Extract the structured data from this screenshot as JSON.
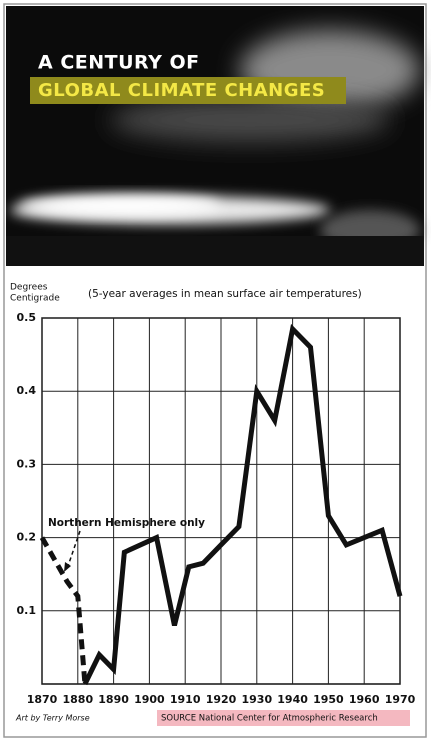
{
  "chart_data": {
    "type": "line",
    "title": [
      "A CENTURY OF",
      "GLOBAL CLIMATE CHANGES"
    ],
    "ylabel": [
      "Degrees",
      "Centigrade"
    ],
    "subtitle": "(5-year averages in mean surface air temperatures)",
    "credit": "Art by Terry Morse",
    "source": "SOURCE National Center for Atmospheric Research",
    "xlim": [
      1870,
      1970
    ],
    "xticks": [
      1870,
      1880,
      1890,
      1900,
      1910,
      1920,
      1930,
      1940,
      1950,
      1960,
      1970
    ],
    "ylim": [
      0,
      0.5
    ],
    "yticks": [
      0.1,
      0.2,
      0.3,
      0.4,
      0.5
    ],
    "grid": true,
    "series": [
      {
        "name": "Northern Hemisphere only",
        "color": "#111111",
        "dashed": true,
        "x": [
          1870,
          1877,
          1880,
          1882
        ],
        "values": [
          0.2,
          0.14,
          0.12,
          0.0
        ]
      },
      {
        "color": "#111111",
        "dashed": false,
        "x": [
          1882,
          1886,
          1890,
          1893,
          1902,
          1907,
          1911,
          1915,
          1920,
          1925,
          1930,
          1935,
          1940,
          1945,
          1950,
          1955,
          1960,
          1965,
          1970
        ],
        "values": [
          0.0,
          0.04,
          0.02,
          0.18,
          0.2,
          0.08,
          0.16,
          0.165,
          0.19,
          0.215,
          0.4,
          0.36,
          0.485,
          0.46,
          0.23,
          0.19,
          0.2,
          0.21,
          0.12
        ]
      }
    ]
  }
}
